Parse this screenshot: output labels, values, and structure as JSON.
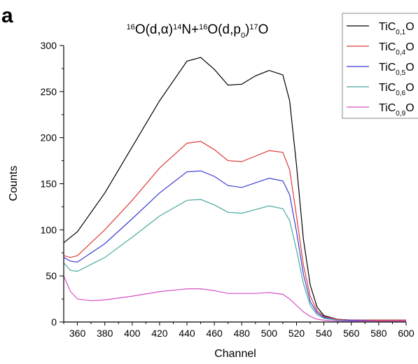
{
  "panel_label": "a",
  "chart_data": {
    "type": "line",
    "title": {
      "parts": [
        {
          "t": "16",
          "s": "sup"
        },
        {
          "t": "O(d,"
        },
        {
          "t": "α"
        },
        {
          "t": ")"
        },
        {
          "t": "14",
          "s": "sup"
        },
        {
          "t": "N+"
        },
        {
          "t": "16",
          "s": "sup"
        },
        {
          "t": "O(d,p"
        },
        {
          "t": "0",
          "s": "sub"
        },
        {
          "t": ")"
        },
        {
          "t": "17",
          "s": "sup"
        },
        {
          "t": "O"
        }
      ]
    },
    "xlabel": "Channel",
    "ylabel": "Counts",
    "xlim": [
      350,
      600
    ],
    "ylim": [
      0,
      300
    ],
    "xticks": [
      360,
      380,
      400,
      420,
      440,
      460,
      480,
      500,
      520,
      540,
      560,
      580,
      600
    ],
    "yticks": [
      0,
      50,
      100,
      150,
      200,
      250,
      300
    ],
    "grid": false,
    "legend_position": "top-right",
    "series": [
      {
        "name": "TiC0,1O",
        "label_parts": [
          {
            "t": "TiC"
          },
          {
            "t": "0,1",
            "s": "sub"
          },
          {
            "t": "O"
          }
        ],
        "color": "#000000",
        "x": [
          350,
          360,
          380,
          400,
          420,
          440,
          450,
          460,
          470,
          480,
          490,
          500,
          510,
          515,
          520,
          525,
          530,
          535,
          540,
          550,
          560,
          580,
          600
        ],
        "y": [
          86,
          98,
          140,
          190,
          240,
          283,
          287,
          274,
          257,
          258,
          267,
          273,
          268,
          240,
          170,
          90,
          40,
          16,
          7,
          3,
          2,
          2,
          2
        ]
      },
      {
        "name": "TiC0,4O",
        "label_parts": [
          {
            "t": "TiC"
          },
          {
            "t": "0,4",
            "s": "sub"
          },
          {
            "t": "O"
          }
        ],
        "color": "#e03a3a",
        "x": [
          350,
          355,
          360,
          380,
          400,
          420,
          440,
          450,
          460,
          470,
          480,
          490,
          500,
          510,
          515,
          520,
          525,
          530,
          535,
          540,
          550,
          560,
          580,
          600
        ],
        "y": [
          72,
          70,
          72,
          100,
          132,
          167,
          194,
          196,
          187,
          175,
          174,
          180,
          186,
          184,
          165,
          115,
          62,
          28,
          12,
          6,
          3,
          2,
          2,
          2
        ]
      },
      {
        "name": "TiC0,5O",
        "label_parts": [
          {
            "t": "TiC"
          },
          {
            "t": "0,5",
            "s": "sub"
          },
          {
            "t": "O"
          }
        ],
        "color": "#3b3bd4",
        "x": [
          350,
          355,
          360,
          380,
          400,
          420,
          440,
          450,
          460,
          470,
          480,
          490,
          500,
          510,
          515,
          520,
          525,
          530,
          535,
          540,
          550,
          560,
          580,
          600
        ],
        "y": [
          70,
          66,
          65,
          85,
          112,
          140,
          163,
          164,
          158,
          148,
          146,
          151,
          156,
          153,
          138,
          98,
          52,
          22,
          10,
          5,
          2,
          2,
          1,
          1
        ]
      },
      {
        "name": "TiC0,6O",
        "label_parts": [
          {
            "t": "TiC"
          },
          {
            "t": "0,6",
            "s": "sub"
          },
          {
            "t": "O"
          }
        ],
        "color": "#4aa8a0",
        "x": [
          350,
          355,
          360,
          380,
          400,
          420,
          440,
          450,
          460,
          470,
          480,
          490,
          500,
          510,
          515,
          520,
          525,
          530,
          535,
          540,
          550,
          560,
          580,
          600
        ],
        "y": [
          64,
          56,
          55,
          70,
          92,
          115,
          132,
          133,
          127,
          119,
          118,
          122,
          126,
          123,
          110,
          78,
          42,
          18,
          8,
          4,
          2,
          1,
          1,
          1
        ]
      },
      {
        "name": "TiC0,9O",
        "label_parts": [
          {
            "t": "TiC"
          },
          {
            "t": "0,9",
            "s": "sub"
          },
          {
            "t": "O"
          }
        ],
        "color": "#d44fc4",
        "x": [
          350,
          355,
          360,
          370,
          380,
          400,
          420,
          440,
          450,
          460,
          470,
          480,
          490,
          500,
          510,
          515,
          520,
          525,
          530,
          535,
          540,
          550,
          560,
          580,
          600
        ],
        "y": [
          50,
          33,
          25,
          23,
          24,
          28,
          33,
          36,
          36,
          34,
          31,
          31,
          31,
          32,
          30,
          25,
          18,
          11,
          6,
          3,
          2,
          1,
          1,
          1,
          1
        ]
      }
    ]
  }
}
